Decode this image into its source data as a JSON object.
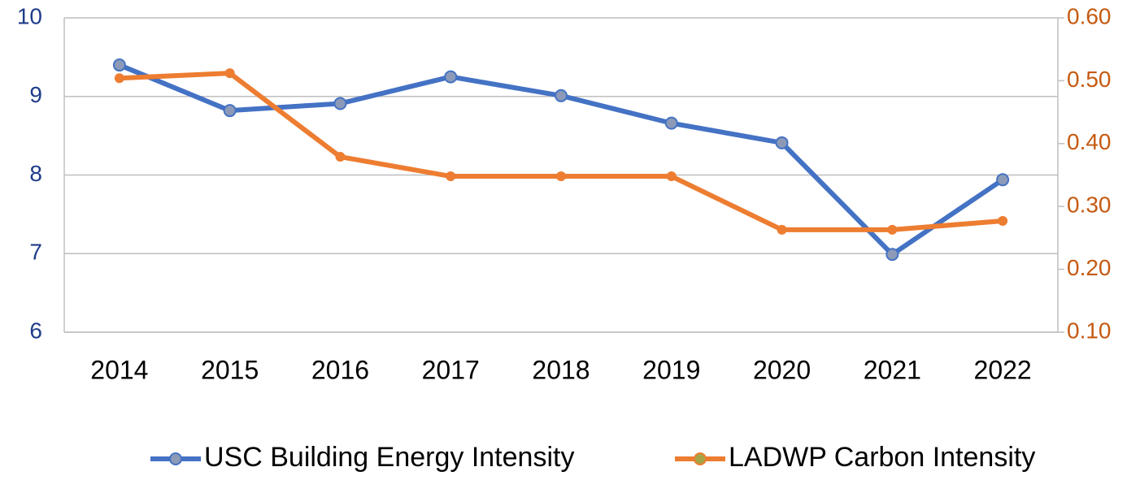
{
  "chart_data": {
    "type": "line",
    "categories": [
      "2014",
      "2015",
      "2016",
      "2017",
      "2018",
      "2019",
      "2020",
      "2021",
      "2022"
    ],
    "series": [
      {
        "name": "USC Building Energy Intensity",
        "color": "#4472c4",
        "values": [
          9.4,
          8.82,
          8.91,
          9.25,
          9.01,
          8.66,
          8.41,
          6.99,
          7.94
        ]
      },
      {
        "name": "LADWP Carbon Intensity",
        "color": "#ed7d31",
        "axis": "y2",
        "values": [
          0.504,
          0.512,
          0.379,
          0.348,
          0.348,
          0.348,
          0.263,
          0.263,
          0.277
        ]
      }
    ],
    "ylim": [
      6,
      10
    ],
    "yticks": [
      6,
      7,
      8,
      9,
      10
    ],
    "y2lim": [
      0.1,
      0.6
    ],
    "y2ticks": [
      {
        "value": 0.1,
        "label": "0.10"
      },
      {
        "value": 0.2,
        "label": "0.20"
      },
      {
        "value": 0.3,
        "label": "0.30"
      },
      {
        "value": 0.4,
        "label": "0.40"
      },
      {
        "value": 0.5,
        "label": "0.50"
      },
      {
        "value": 0.6,
        "label": "0.60"
      }
    ],
    "grid": true,
    "legend": "bottom"
  }
}
